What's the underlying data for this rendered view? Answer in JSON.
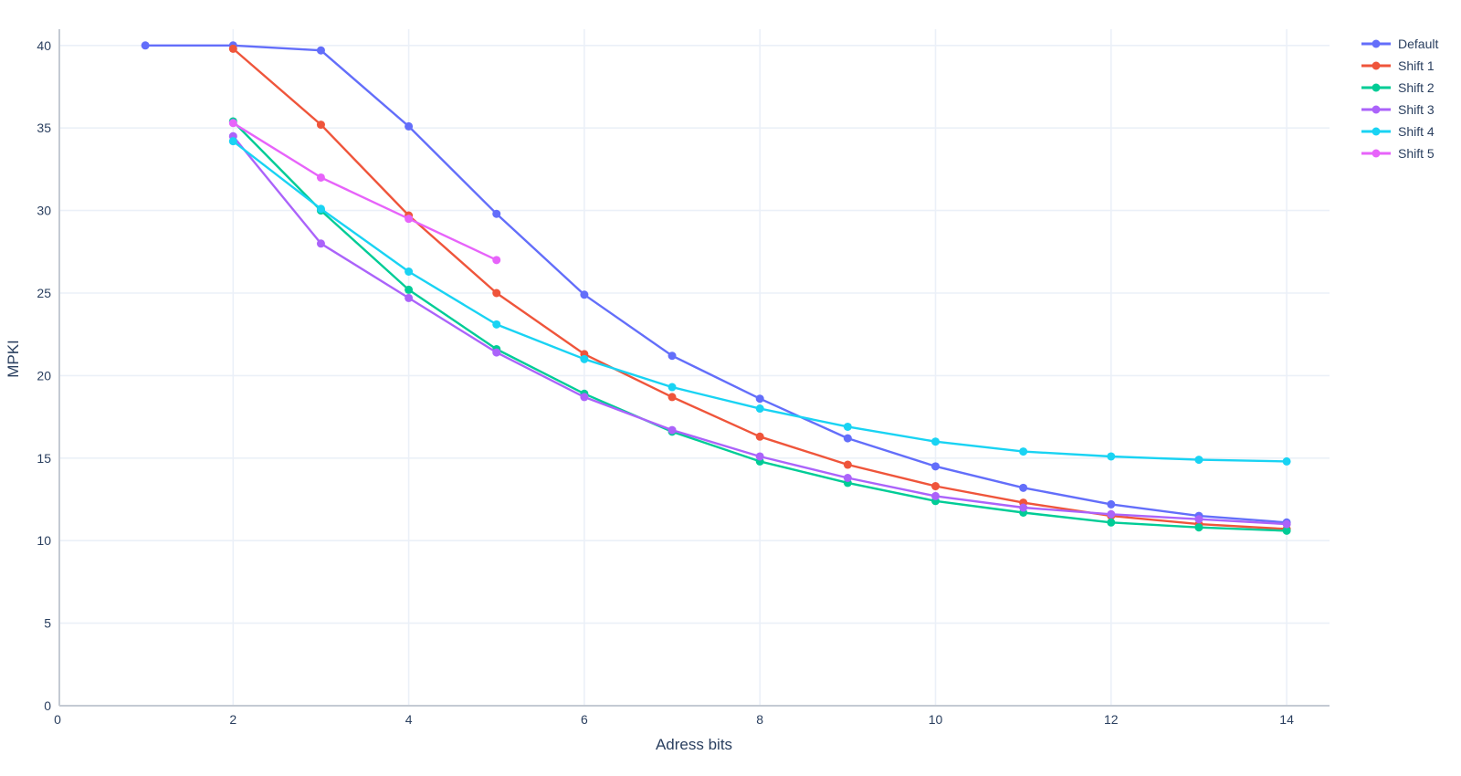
{
  "chart_data": {
    "type": "line",
    "mode": "lines+markers",
    "title": "",
    "xlabel": "Adress bits",
    "ylabel": "MPKI",
    "xlim": [
      0,
      14.5
    ],
    "ylim": [
      0,
      41
    ],
    "x_ticks": [
      0,
      2,
      4,
      6,
      8,
      10,
      12,
      14
    ],
    "y_ticks": [
      0,
      5,
      10,
      15,
      20,
      25,
      30,
      35,
      40
    ],
    "grid": true,
    "legend_position": "top-right-outside",
    "series": [
      {
        "name": "Default",
        "color": "#636efa",
        "x": [
          1,
          2,
          3,
          4,
          5,
          6,
          7,
          8,
          9,
          10,
          11,
          12,
          13,
          14
        ],
        "y": [
          40.0,
          40.0,
          39.7,
          35.1,
          29.8,
          24.9,
          21.2,
          18.6,
          16.2,
          14.5,
          13.2,
          12.2,
          11.5,
          11.1
        ]
      },
      {
        "name": "Shift 1",
        "color": "#ef553b",
        "x": [
          2,
          3,
          4,
          5,
          6,
          7,
          8,
          9,
          10,
          11,
          12,
          13,
          14
        ],
        "y": [
          39.8,
          35.2,
          29.7,
          25.0,
          21.3,
          18.7,
          16.3,
          14.6,
          13.3,
          12.3,
          11.5,
          11.0,
          10.7
        ]
      },
      {
        "name": "Shift 2",
        "color": "#00cc96",
        "x": [
          2,
          3,
          4,
          5,
          6,
          7,
          8,
          9,
          10,
          11,
          12,
          13,
          14
        ],
        "y": [
          35.4,
          30.0,
          25.2,
          21.6,
          18.9,
          16.6,
          14.8,
          13.5,
          12.4,
          11.7,
          11.1,
          10.8,
          10.6
        ]
      },
      {
        "name": "Shift 3",
        "color": "#ab63fa",
        "x": [
          2,
          3,
          4,
          5,
          6,
          7,
          8,
          9,
          10,
          11,
          12,
          13,
          14
        ],
        "y": [
          34.5,
          28.0,
          24.7,
          21.4,
          18.7,
          16.7,
          15.1,
          13.8,
          12.7,
          12.0,
          11.6,
          11.3,
          11.0
        ]
      },
      {
        "name": "Shift 4",
        "color": "#19d3f3",
        "x": [
          2,
          3,
          4,
          5,
          6,
          7,
          8,
          9,
          10,
          11,
          12,
          13,
          14
        ],
        "y": [
          34.2,
          30.1,
          26.3,
          23.1,
          21.0,
          19.3,
          18.0,
          16.9,
          16.0,
          15.4,
          15.1,
          14.9,
          14.8
        ]
      },
      {
        "name": "Shift 5",
        "color": "#e763fa",
        "x": [
          2,
          3,
          4,
          5
        ],
        "y": [
          35.3,
          32.0,
          29.5,
          27.0
        ]
      }
    ]
  },
  "theme": {
    "background": "#ffffff",
    "grid_color": "#ebf0f8",
    "axis_line_color": "#c4cad3",
    "text_color": "#2a3f5f",
    "tick_font_size": 14,
    "legend_font_size": 14
  }
}
